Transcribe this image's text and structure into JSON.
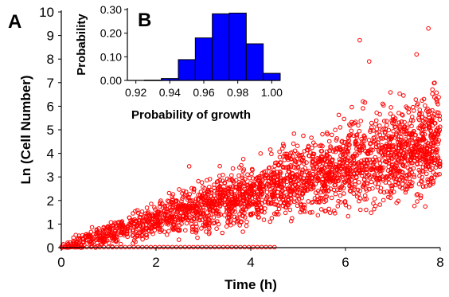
{
  "panel_labels": {
    "main": "A",
    "inset": "B"
  },
  "chart_data": [
    {
      "type": "scatter",
      "xlabel": "Time (h)",
      "ylabel": "Ln (Cell Number)",
      "xlim": [
        0,
        8
      ],
      "ylim": [
        0,
        10
      ],
      "xticks": [
        "0",
        "2",
        "4",
        "6",
        "8"
      ],
      "yticks": [
        "0",
        "1",
        "2",
        "3",
        "4",
        "5",
        "6",
        "7",
        "8",
        "9",
        "10"
      ],
      "marker": "open circle",
      "color": "#ff0000",
      "trend": {
        "y_mean_at_x": [
          [
            0,
            0
          ],
          [
            2,
            1.1
          ],
          [
            4,
            2.3
          ],
          [
            6,
            3.4
          ],
          [
            8,
            4.6
          ]
        ],
        "spread_grows_with_x": true
      },
      "notable_points": [
        {
          "x": 7.75,
          "y": 9.3
        },
        {
          "x": 6.3,
          "y": 8.8
        },
        {
          "x": 2.7,
          "y": 3.45
        },
        {
          "x": 7.5,
          "y": 8.2
        },
        {
          "x": 6.5,
          "y": 7.9
        }
      ]
    },
    {
      "type": "bar",
      "title": "",
      "xlabel": "Probability of growth",
      "ylabel": "Probability",
      "xlim": [
        0.915,
        1.005
      ],
      "ylim": [
        0,
        0.3
      ],
      "xticks": [
        "0.92",
        "0.94",
        "0.96",
        "0.98",
        "1.00"
      ],
      "yticks": [
        "0.00",
        "0.10",
        "0.20",
        "0.30"
      ],
      "color": "#0000ff",
      "bin_width": 0.01,
      "bins": [
        {
          "x0": 0.925,
          "value": 0.001
        },
        {
          "x0": 0.935,
          "value": 0.008
        },
        {
          "x0": 0.945,
          "value": 0.088
        },
        {
          "x0": 0.955,
          "value": 0.18
        },
        {
          "x0": 0.965,
          "value": 0.282
        },
        {
          "x0": 0.975,
          "value": 0.285
        },
        {
          "x0": 0.985,
          "value": 0.155
        },
        {
          "x0": 0.995,
          "value": 0.03
        }
      ]
    }
  ]
}
